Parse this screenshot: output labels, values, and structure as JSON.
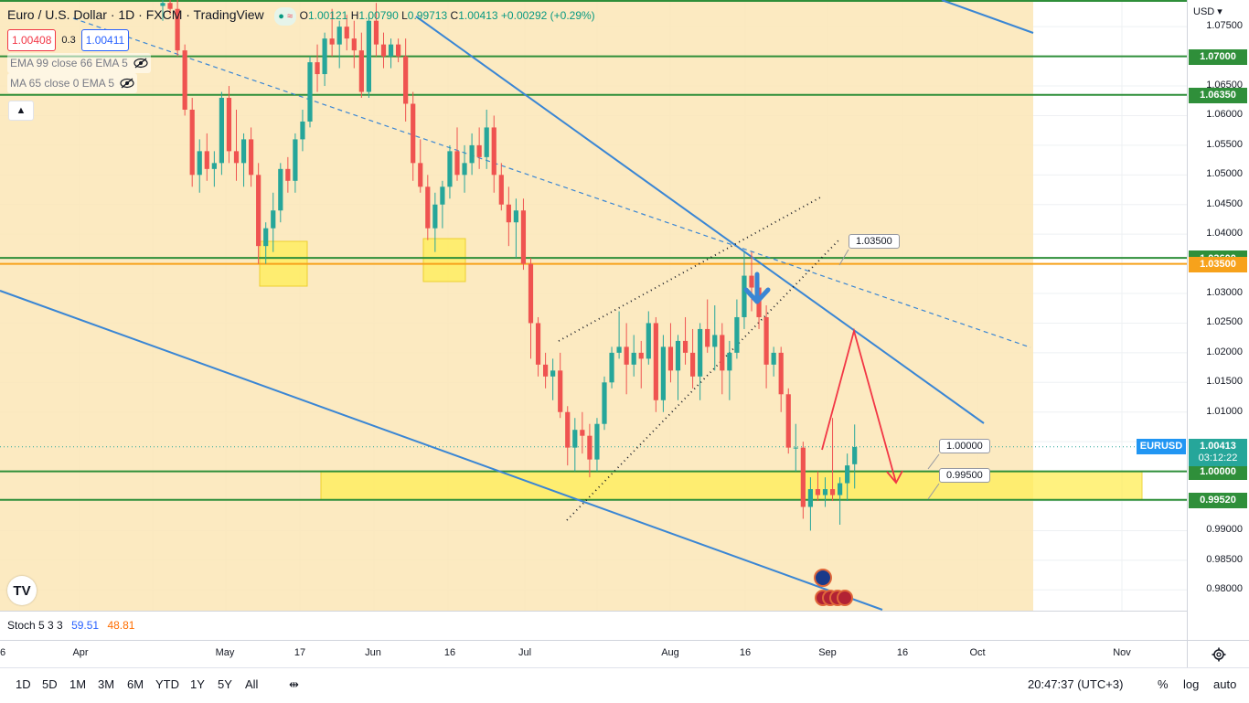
{
  "header": {
    "symbol_title": "Euro / U.S. Dollar · 1D · FXCM · TradingView",
    "ohlc": {
      "o_label": "O",
      "o": "1.00121",
      "h_label": "H",
      "h": "1.00790",
      "l_label": "L",
      "l": "0.99713",
      "c_label": "C",
      "c": "1.00413",
      "change": "+0.00292 (+0.29%)"
    },
    "sell_price": "1.00408",
    "spread": "0.3",
    "buy_price": "1.00411",
    "indicator_1": "EMA 99 close 66 EMA 5",
    "indicator_2": "MA 65 close 0 EMA 5",
    "currency": "USD"
  },
  "colors": {
    "up": "#26a69a",
    "down": "#ef5350",
    "zone": "#fbe6b6",
    "yellow_zone": "#ffee55",
    "trend": "#3a86d4",
    "hline": "#2f8f3a",
    "orange_line": "#f7a21b",
    "proj": "#f23645"
  },
  "price_axis": {
    "ticks": [
      "1.07500",
      "1.06500",
      "1.06000",
      "1.05500",
      "1.05000",
      "1.04500",
      "1.04000",
      "1.03000",
      "1.02500",
      "1.02000",
      "1.01500",
      "1.01000",
      "0.99000",
      "0.98500",
      "0.98000"
    ],
    "tags": [
      {
        "text": "1.07000",
        "kind": "green"
      },
      {
        "text": "1.06350",
        "kind": "green"
      },
      {
        "text": "1.03600",
        "kind": "green"
      },
      {
        "text": "1.03500",
        "kind": "orange"
      },
      {
        "text": "1.00000",
        "kind": "green"
      },
      {
        "text": "0.99520",
        "kind": "green"
      }
    ],
    "last": {
      "symbol": "EURUSD",
      "price": "1.00413",
      "countdown": "03:12:22"
    }
  },
  "time_axis": {
    "ticks": [
      "6",
      "Apr",
      "May",
      "17",
      "Jun",
      "16",
      "Jul",
      "Aug",
      "16",
      "Sep",
      "16",
      "Oct",
      "Nov"
    ]
  },
  "notes": {
    "n1": "1.03500",
    "n2": "1.00000",
    "n3": "0.99500"
  },
  "stoch": {
    "label": "Stoch 5 3 3",
    "k": "59.51",
    "d": "48.81"
  },
  "bottom_bar": {
    "ranges": [
      "1D",
      "5D",
      "1M",
      "3M",
      "6M",
      "YTD",
      "1Y",
      "5Y",
      "All"
    ],
    "clock": "20:47:37 (UTC+3)",
    "pct": "%",
    "log": "log",
    "auto": "auto"
  },
  "chart_data": {
    "type": "candlestick",
    "title": "Euro / U.S. Dollar · 1D · FXCM",
    "ylim": [
      0.9765,
      1.0795
    ],
    "note": "daily EUR/USD candles, approx Mar–Aug 2022",
    "candles": [
      [
        1.0785,
        1.08,
        1.076,
        1.079
      ],
      [
        1.079,
        1.08,
        1.077,
        1.078
      ],
      [
        1.078,
        1.08,
        1.07,
        1.071
      ],
      [
        1.071,
        1.072,
        1.06,
        1.061
      ],
      [
        1.061,
        1.063,
        1.048,
        1.05
      ],
      [
        1.05,
        1.056,
        1.047,
        1.054
      ],
      [
        1.054,
        1.057,
        1.049,
        1.051
      ],
      [
        1.051,
        1.054,
        1.048,
        1.052
      ],
      [
        1.052,
        1.064,
        1.05,
        1.063
      ],
      [
        1.063,
        1.065,
        1.052,
        1.054
      ],
      [
        1.054,
        1.061,
        1.049,
        1.052
      ],
      [
        1.052,
        1.057,
        1.048,
        1.056
      ],
      [
        1.056,
        1.058,
        1.048,
        1.05
      ],
      [
        1.05,
        1.052,
        1.035,
        1.038
      ],
      [
        1.038,
        1.042,
        1.035,
        1.041
      ],
      [
        1.041,
        1.047,
        1.037,
        1.044
      ],
      [
        1.044,
        1.052,
        1.042,
        1.051
      ],
      [
        1.051,
        1.053,
        1.047,
        1.049
      ],
      [
        1.049,
        1.057,
        1.047,
        1.056
      ],
      [
        1.056,
        1.061,
        1.054,
        1.059
      ],
      [
        1.059,
        1.07,
        1.058,
        1.069
      ],
      [
        1.069,
        1.072,
        1.064,
        1.067
      ],
      [
        1.067,
        1.074,
        1.065,
        1.073
      ],
      [
        1.073,
        1.078,
        1.07,
        1.072
      ],
      [
        1.072,
        1.076,
        1.068,
        1.075
      ],
      [
        1.075,
        1.077,
        1.071,
        1.073
      ],
      [
        1.073,
        1.076,
        1.068,
        1.071
      ],
      [
        1.071,
        1.074,
        1.063,
        1.064
      ],
      [
        1.064,
        1.077,
        1.063,
        1.076
      ],
      [
        1.076,
        1.079,
        1.07,
        1.072
      ],
      [
        1.072,
        1.074,
        1.068,
        1.07
      ],
      [
        1.07,
        1.073,
        1.068,
        1.072
      ],
      [
        1.072,
        1.073,
        1.069,
        1.07
      ],
      [
        1.07,
        1.073,
        1.059,
        1.062
      ],
      [
        1.062,
        1.064,
        1.049,
        1.052
      ],
      [
        1.052,
        1.056,
        1.047,
        1.048
      ],
      [
        1.048,
        1.05,
        1.039,
        1.041
      ],
      [
        1.041,
        1.047,
        1.037,
        1.045
      ],
      [
        1.045,
        1.049,
        1.041,
        1.048
      ],
      [
        1.048,
        1.055,
        1.046,
        1.054
      ],
      [
        1.054,
        1.058,
        1.049,
        1.05
      ],
      [
        1.05,
        1.055,
        1.047,
        1.052
      ],
      [
        1.052,
        1.057,
        1.05,
        1.055
      ],
      [
        1.055,
        1.058,
        1.051,
        1.053
      ],
      [
        1.053,
        1.061,
        1.051,
        1.058
      ],
      [
        1.058,
        1.06,
        1.047,
        1.05
      ],
      [
        1.05,
        1.052,
        1.044,
        1.045
      ],
      [
        1.045,
        1.048,
        1.038,
        1.042
      ],
      [
        1.042,
        1.046,
        1.036,
        1.044
      ],
      [
        1.044,
        1.046,
        1.034,
        1.035
      ],
      [
        1.035,
        1.036,
        1.019,
        1.025
      ],
      [
        1.025,
        1.026,
        1.016,
        1.018
      ],
      [
        1.018,
        1.02,
        1.014,
        1.016
      ],
      [
        1.016,
        1.019,
        1.012,
        1.017
      ],
      [
        1.017,
        1.02,
        1.009,
        1.01
      ],
      [
        1.01,
        1.011,
        1.001,
        1.004
      ],
      [
        1.004,
        1.009,
        1.0,
        1.007
      ],
      [
        1.007,
        1.01,
        1.003,
        1.006
      ],
      [
        1.006,
        1.008,
        0.999,
        1.002
      ],
      [
        1.002,
        1.009,
        1.0,
        1.008
      ],
      [
        1.008,
        1.016,
        1.007,
        1.015
      ],
      [
        1.015,
        1.021,
        1.014,
        1.02
      ],
      [
        1.02,
        1.027,
        1.019,
        1.021
      ],
      [
        1.021,
        1.025,
        1.013,
        1.018
      ],
      [
        1.018,
        1.023,
        1.016,
        1.02
      ],
      [
        1.02,
        1.022,
        1.014,
        1.019
      ],
      [
        1.019,
        1.027,
        1.018,
        1.025
      ],
      [
        1.025,
        1.026,
        1.01,
        1.012
      ],
      [
        1.012,
        1.023,
        1.01,
        1.021
      ],
      [
        1.021,
        1.025,
        1.015,
        1.017
      ],
      [
        1.017,
        1.023,
        1.012,
        1.022
      ],
      [
        1.022,
        1.026,
        1.018,
        1.02
      ],
      [
        1.02,
        1.024,
        1.014,
        1.016
      ],
      [
        1.016,
        1.025,
        1.012,
        1.024
      ],
      [
        1.024,
        1.029,
        1.02,
        1.021
      ],
      [
        1.021,
        1.028,
        1.017,
        1.023
      ],
      [
        1.023,
        1.025,
        1.013,
        1.017
      ],
      [
        1.017,
        1.022,
        1.012,
        1.02
      ],
      [
        1.02,
        1.029,
        1.019,
        1.026
      ],
      [
        1.026,
        1.037,
        1.024,
        1.033
      ],
      [
        1.033,
        1.037,
        1.027,
        1.031
      ],
      [
        1.031,
        1.032,
        1.024,
        1.026
      ],
      [
        1.026,
        1.028,
        1.014,
        1.018
      ],
      [
        1.018,
        1.021,
        1.016,
        1.02
      ],
      [
        1.02,
        1.021,
        1.01,
        1.013
      ],
      [
        1.013,
        1.014,
        1.003,
        1.004
      ],
      [
        1.004,
        1.008,
        1.0,
        1.004
      ],
      [
        1.004,
        1.005,
        0.992,
        0.994
      ],
      [
        0.994,
        0.999,
        0.99,
        0.997
      ],
      [
        0.997,
        1.0,
        0.995,
        0.996
      ],
      [
        0.996,
        0.999,
        0.994,
        0.997
      ],
      [
        0.997,
        1.009,
        0.995,
        0.996
      ],
      [
        0.996,
        0.999,
        0.991,
        0.998
      ],
      [
        0.998,
        1.003,
        0.995,
        1.001
      ],
      [
        1.0012,
        1.0079,
        0.9971,
        1.0041
      ]
    ],
    "horizontal_levels": [
      1.07,
      1.0635,
      1.036,
      1.035,
      1.0,
      0.9952
    ]
  }
}
